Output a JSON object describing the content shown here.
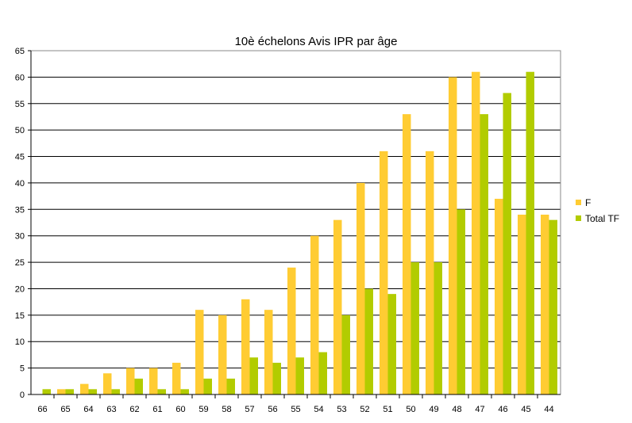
{
  "chart_data": {
    "type": "bar",
    "title": "10è échelons Avis IPR par âge",
    "xlabel": "",
    "ylabel": "",
    "categories": [
      "66",
      "65",
      "64",
      "63",
      "62",
      "61",
      "60",
      "59",
      "58",
      "57",
      "56",
      "55",
      "54",
      "53",
      "52",
      "51",
      "50",
      "49",
      "48",
      "47",
      "46",
      "45",
      "44"
    ],
    "series": [
      {
        "name": "F",
        "color": "#FFCC33",
        "values": [
          0,
          1,
          2,
          4,
          5,
          5,
          6,
          16,
          15,
          18,
          16,
          24,
          30,
          33,
          40,
          46,
          53,
          46,
          60,
          61,
          37,
          34,
          34
        ]
      },
      {
        "name": "Total TF",
        "color": "#B2CC00",
        "values": [
          1,
          1,
          1,
          1,
          3,
          1,
          1,
          3,
          3,
          7,
          6,
          7,
          8,
          15,
          20,
          19,
          25,
          25,
          35,
          53,
          57,
          61,
          33
        ]
      }
    ],
    "ylim": [
      0,
      65
    ],
    "yticks": [
      0,
      5,
      10,
      15,
      20,
      25,
      30,
      35,
      40,
      45,
      50,
      55,
      60,
      65
    ],
    "grid": true,
    "legend": "right"
  }
}
